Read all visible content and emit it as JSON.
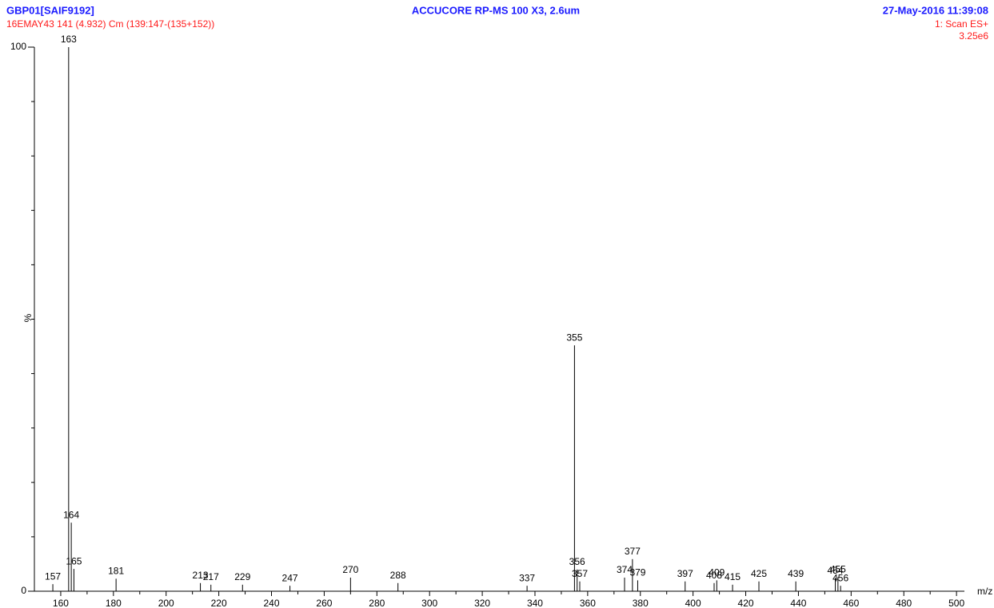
{
  "chart_data": {
    "type": "spectrum",
    "title": "ACCUCORE RP-MS 100 X3, 2.6um",
    "header_left": "GBP01[SAIF9192]",
    "subtitle": "16EMAY43 141 (4.932) Cm (139:147-(135+152))",
    "header_right": "27-May-2016  11:39:08",
    "scan": "1: Scan ES+",
    "intensity": "3.25e6",
    "x_label": "m/z",
    "y_label": "%",
    "x": [
      157,
      163,
      164,
      165,
      181,
      213,
      217,
      229,
      247,
      270,
      288,
      337,
      355,
      356,
      357,
      374,
      377,
      379,
      397,
      408,
      409,
      415,
      425,
      439,
      454,
      455,
      456
    ],
    "values": [
      1.3,
      100,
      12.6,
      4.1,
      2.3,
      1.5,
      1.2,
      1.2,
      1.0,
      2.5,
      1.5,
      1.0,
      45.2,
      4.0,
      1.8,
      2.5,
      5.9,
      2.0,
      1.8,
      1.5,
      2.0,
      1.2,
      1.8,
      1.8,
      2.4,
      2.6,
      1.0
    ],
    "color": "#000000",
    "xlim": [
      150,
      503
    ],
    "ylim": [
      0,
      100
    ],
    "xticks": [
      160,
      180,
      200,
      220,
      240,
      260,
      280,
      300,
      320,
      340,
      360,
      380,
      400,
      420,
      440,
      460,
      480,
      500
    ],
    "xminorticks": [
      170,
      190,
      210,
      230,
      250,
      270,
      290,
      310,
      330,
      350,
      370,
      390,
      410,
      430,
      450,
      470,
      490
    ],
    "yticks": [
      0,
      100
    ],
    "yminorticks": [
      10,
      20,
      30,
      40,
      50,
      60,
      70,
      80,
      90
    ]
  }
}
